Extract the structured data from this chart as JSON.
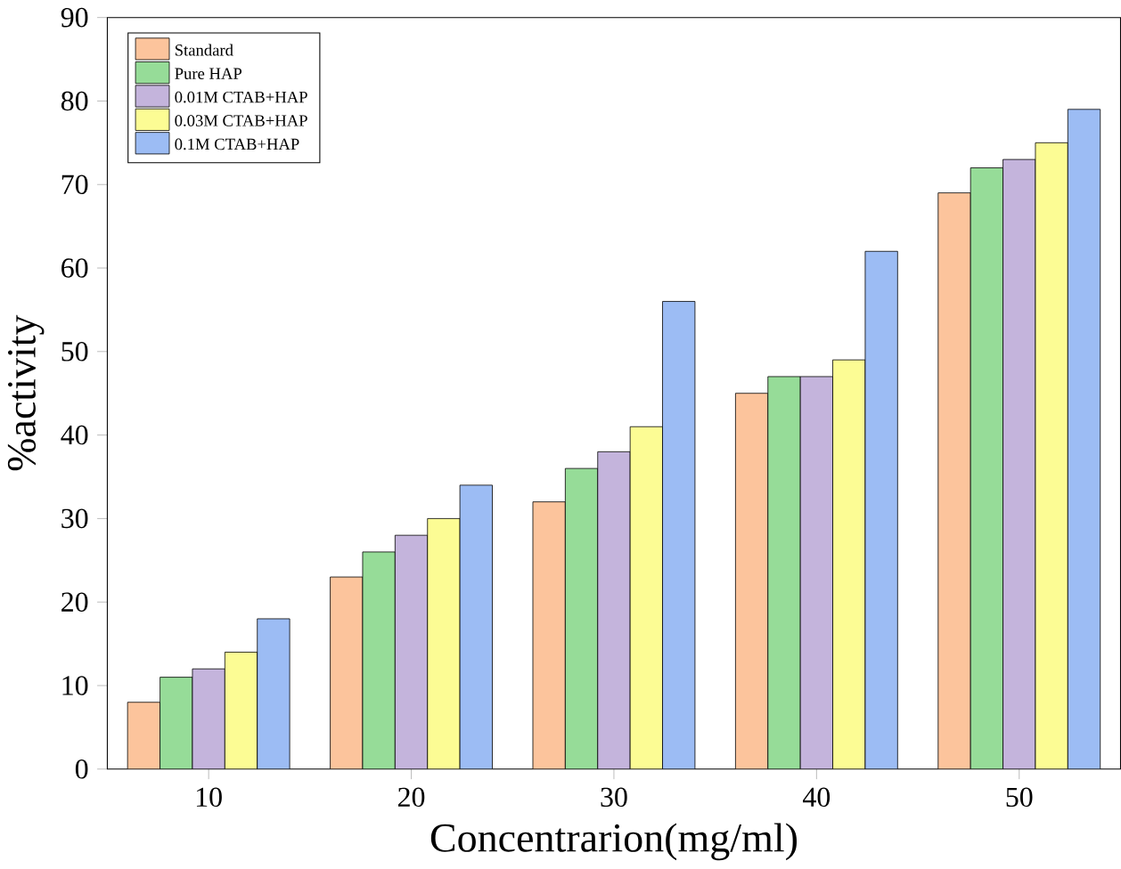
{
  "chart_data": {
    "type": "bar",
    "xlabel": "Concentrarion(mg/ml)",
    "ylabel": "%activity",
    "categories": [
      "10",
      "20",
      "30",
      "40",
      "50"
    ],
    "ylim": [
      0,
      90
    ],
    "yticks": [
      0,
      10,
      20,
      30,
      40,
      50,
      60,
      70,
      80,
      90
    ],
    "legend": "top left",
    "series": [
      {
        "name": "Standard",
        "color": "#fcc49c",
        "values": [
          8,
          23,
          32,
          45,
          69
        ]
      },
      {
        "name": "Pure HAP",
        "color": "#96dc98",
        "values": [
          11,
          26,
          36,
          47,
          72
        ]
      },
      {
        "name": "0.01M CTAB+HAP",
        "color": "#c4b4dc",
        "values": [
          12,
          28,
          38,
          47,
          73
        ]
      },
      {
        "name": "0.03M  CTAB+HAP",
        "color": "#fcfc94",
        "values": [
          14,
          30,
          41,
          49,
          75
        ]
      },
      {
        "name": "0.1M CTAB+HAP",
        "color": "#9cbcf4",
        "values": [
          18,
          34,
          56,
          62,
          79
        ]
      }
    ]
  }
}
